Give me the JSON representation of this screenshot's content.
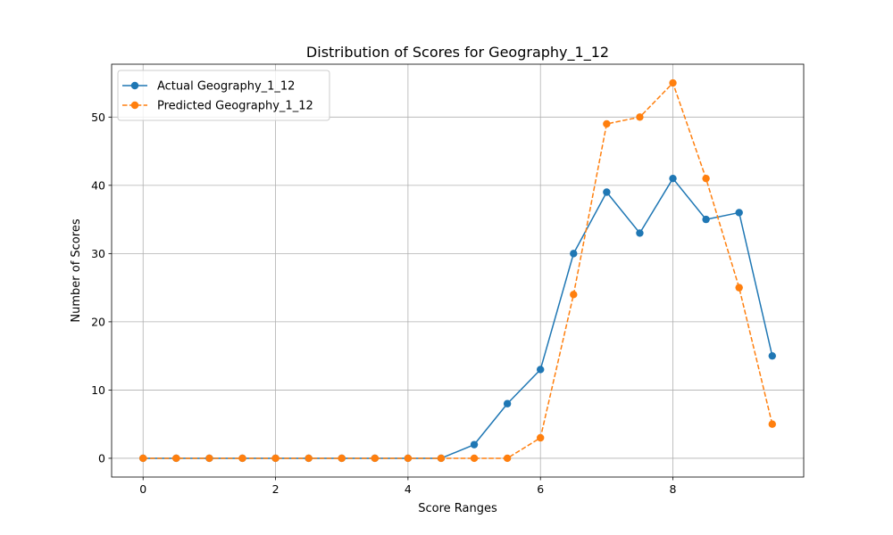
{
  "chart_data": {
    "type": "line",
    "title": "Distribution of Scores for Geography_1_12",
    "xlabel": "Score Ranges",
    "ylabel": "Number of Scores",
    "xlim": [
      -0.475,
      9.975
    ],
    "ylim": [
      -2.75,
      57.75
    ],
    "xticks": [
      0,
      2,
      4,
      6,
      8
    ],
    "yticks": [
      0,
      10,
      20,
      30,
      40,
      50
    ],
    "grid": true,
    "legend_position": "top-left",
    "x": [
      0,
      0.5,
      1,
      1.5,
      2,
      2.5,
      3,
      3.5,
      4,
      4.5,
      5,
      5.5,
      6,
      6.5,
      7,
      7.5,
      8,
      8.5,
      9,
      9.5
    ],
    "series": [
      {
        "name": "Actual Geography_1_12",
        "color": "#1f77b4",
        "line_style": "solid",
        "marker": "circle",
        "values": [
          0,
          0,
          0,
          0,
          0,
          0,
          0,
          0,
          0,
          0,
          2,
          8,
          13,
          30,
          39,
          33,
          41,
          35,
          36,
          15
        ]
      },
      {
        "name": "Predicted Geography_1_12",
        "color": "#ff7f0e",
        "line_style": "dashed",
        "marker": "circle",
        "values": [
          0,
          0,
          0,
          0,
          0,
          0,
          0,
          0,
          0,
          0,
          0,
          0,
          3,
          24,
          49,
          50,
          55,
          41,
          25,
          5
        ]
      }
    ]
  }
}
